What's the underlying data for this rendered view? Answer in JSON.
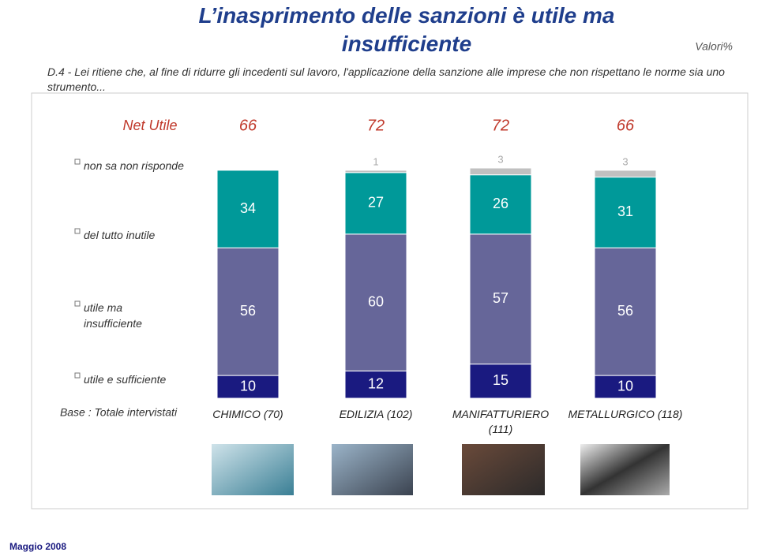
{
  "chart_data": {
    "type": "stacked-bar",
    "title": "L’inasprimento delle sanzioni è utile ma insufficiente",
    "subtitle": "D.4 - Lei ritiene che, al fine di ridurre gli incedenti sul lavoro, l'applicazione della sanzione alle imprese che non rispettano le norme sia uno strumento...",
    "unit_note": "Valori%",
    "net_label": "Net Utile",
    "net_values": [
      66,
      72,
      72,
      66
    ],
    "base_label": "Base : Totale intervistati",
    "footer": "Maggio 2008",
    "categories": [
      "CHIMICO (70)",
      "EDILIZIA (102)",
      "MANIFATTURIERO (111)",
      "METALLURGICO (118)"
    ],
    "series": [
      {
        "name": "utile e sufficiente",
        "color": "#1a1a80",
        "values": [
          10,
          12,
          15,
          10
        ]
      },
      {
        "name": "utile ma insufficiente",
        "color": "#666699",
        "values": [
          56,
          60,
          57,
          56
        ]
      },
      {
        "name": "del tutto inutile",
        "color": "#009999",
        "values": [
          34,
          27,
          26,
          31
        ]
      },
      {
        "name": "non sa non risponde",
        "color": "#c0c0c0",
        "values": [
          null,
          1,
          3,
          3
        ]
      }
    ]
  }
}
